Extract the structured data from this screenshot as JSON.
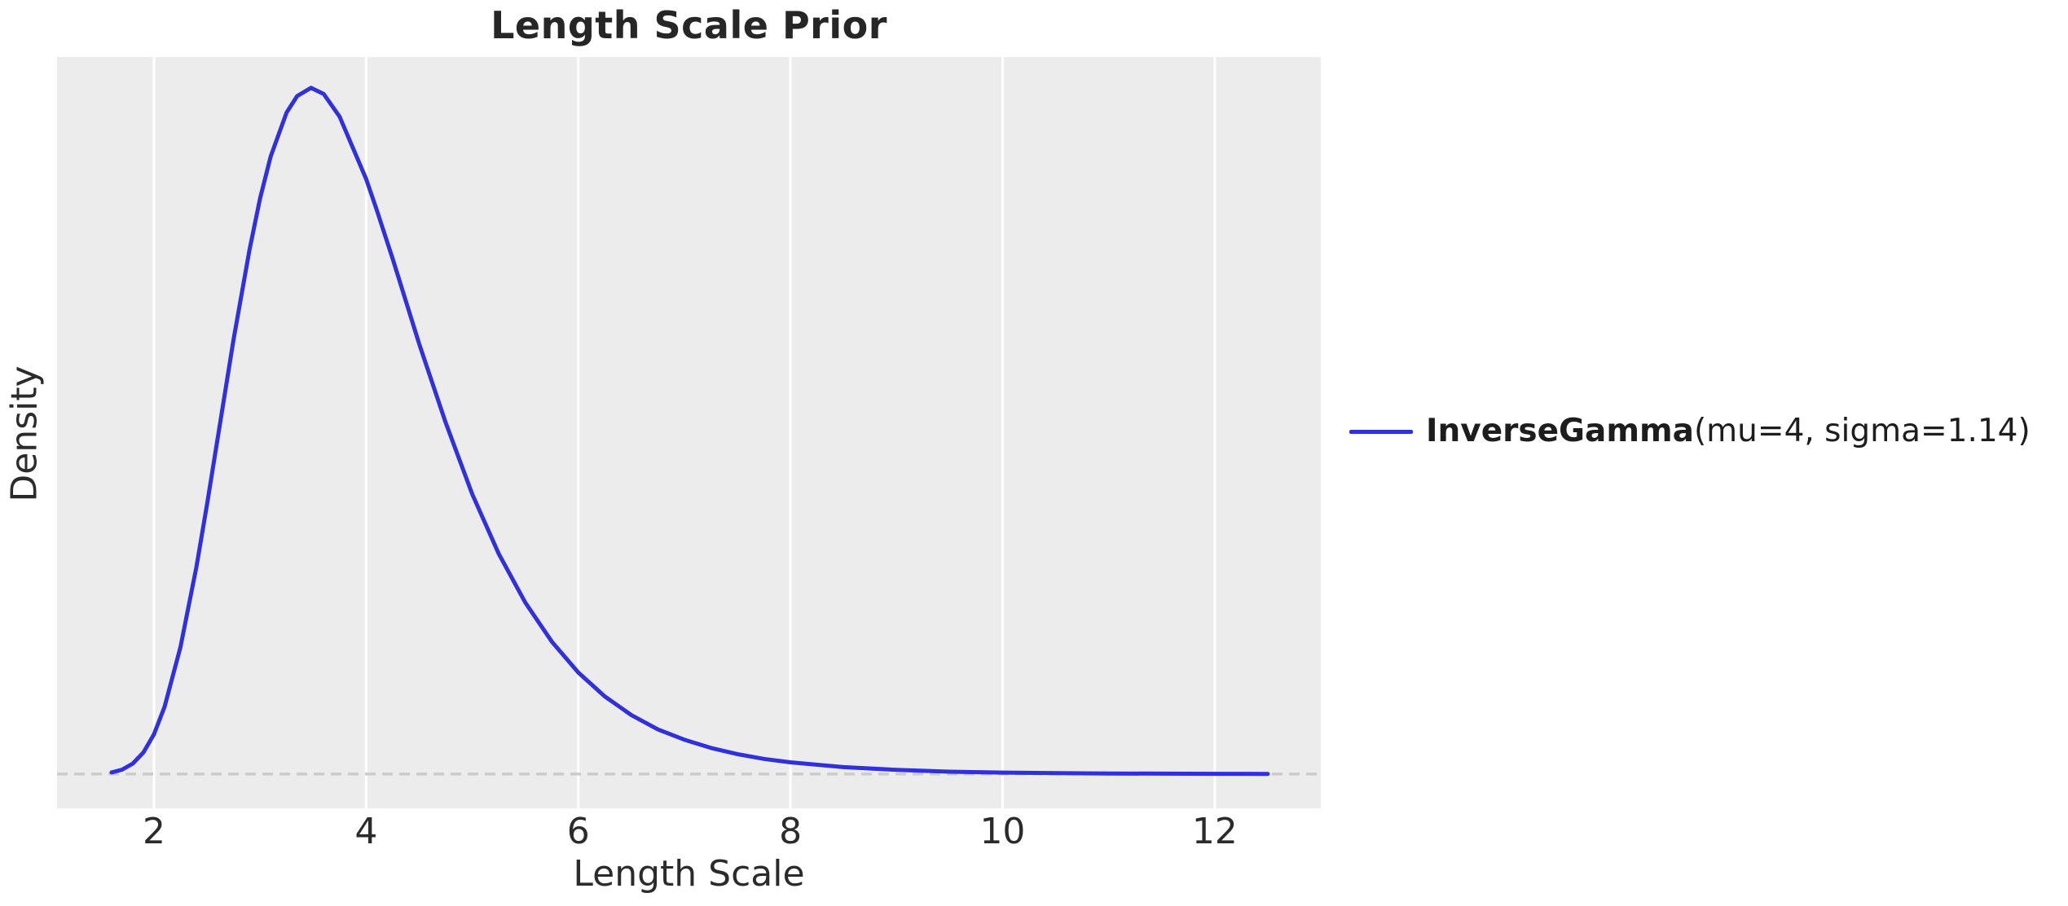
{
  "title": "Length Scale Prior",
  "x_axis": {
    "label": "Length Scale",
    "ticks": [
      "2",
      "4",
      "6",
      "8",
      "10",
      "12"
    ]
  },
  "y_axis": {
    "label": "Density"
  },
  "legend": {
    "name": "InverseGamma",
    "params": "(mu=4, sigma=1.14)"
  },
  "colors": {
    "curve": "#3030DC",
    "plot_bg": "#ECECEC",
    "gridline": "#FFFFFF",
    "zero_line": "#CBCBCB",
    "title_text": "#262626",
    "axis_text": "#2b2b2b"
  },
  "chart_data": {
    "type": "line",
    "title": "Length Scale Prior",
    "xlabel": "Length Scale",
    "ylabel": "Density",
    "xlim": [
      1.086,
      13.0
    ],
    "ylim": [
      -0.05,
      1.045
    ],
    "x_ticks": [
      2,
      4,
      6,
      8,
      10,
      12
    ],
    "y_ticks": [],
    "grid": "vertical-only",
    "zero_reference_line": {
      "y": 0,
      "style": "dashed",
      "color": "#CBCBCB"
    },
    "legend_position": "right-outside",
    "y_units": "relative density (peak normalized to 1, no y tick labels shown)",
    "series": [
      {
        "name": "InverseGamma(mu=4, sigma=1.14)",
        "distribution": "InverseGamma",
        "mu": 4,
        "sigma": 1.14,
        "color": "#3030DC",
        "x": [
          1.6,
          1.7,
          1.8,
          1.9,
          2.0,
          2.1,
          2.25,
          2.4,
          2.5,
          2.6,
          2.75,
          2.9,
          3.0,
          3.1,
          3.25,
          3.35,
          3.48,
          3.6,
          3.75,
          4.0,
          4.1,
          4.25,
          4.5,
          4.75,
          5.0,
          5.25,
          5.5,
          5.75,
          6.0,
          6.25,
          6.5,
          6.75,
          7.0,
          7.25,
          7.5,
          7.75,
          8.0,
          8.5,
          9.0,
          9.5,
          10.0,
          10.5,
          11.0,
          11.5,
          12.0,
          12.5
        ],
        "y": [
          0.0023,
          0.0064,
          0.0152,
          0.0314,
          0.058,
          0.098,
          0.185,
          0.302,
          0.393,
          0.489,
          0.633,
          0.764,
          0.839,
          0.9,
          0.964,
          0.988,
          1.0,
          0.991,
          0.958,
          0.867,
          0.822,
          0.751,
          0.627,
          0.512,
          0.408,
          0.321,
          0.25,
          0.193,
          0.148,
          0.113,
          0.086,
          0.065,
          0.05,
          0.038,
          0.029,
          0.022,
          0.017,
          0.01,
          0.006,
          0.0034,
          0.0021,
          0.0013,
          0.0008,
          0.0005,
          0.0003,
          0.0002
        ]
      }
    ]
  }
}
